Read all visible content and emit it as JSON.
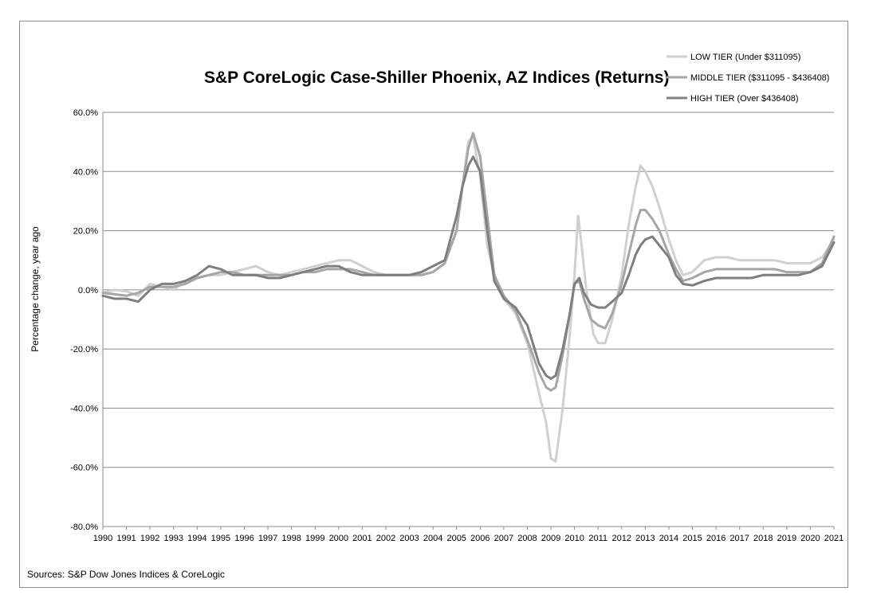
{
  "chart_data": {
    "type": "line",
    "title": "S&P CoreLogic Case-Shiller Phoenix, AZ Indices (Returns)",
    "ylabel": "Percentage change, year ago",
    "xlabel": "",
    "source": "Sources: S&P Dow Jones Indices & CoreLogic",
    "ylim": [
      -80,
      60
    ],
    "xlim": [
      1990,
      2021
    ],
    "y_ticks": [
      "60.0%",
      "40.0%",
      "20.0%",
      "0.0%",
      "-20.0%",
      "-40.0%",
      "-60.0%",
      "-80.0%"
    ],
    "x_ticks": [
      "1990",
      "1991",
      "1992",
      "1993",
      "1994",
      "1995",
      "1996",
      "1997",
      "1998",
      "1999",
      "2000",
      "2001",
      "2002",
      "2003",
      "2004",
      "2005",
      "2006",
      "2007",
      "2008",
      "2009",
      "2010",
      "2011",
      "2012",
      "2013",
      "2014",
      "2015",
      "2016",
      "2017",
      "2018",
      "2019",
      "2020",
      "2021"
    ],
    "grid": true,
    "legend_position": "top-right",
    "series": [
      {
        "name": "LOW TIER (Under $311095)",
        "color": "#d0d0d0",
        "points": [
          [
            1990,
            -1
          ],
          [
            1990.5,
            0
          ],
          [
            1991,
            -0.5
          ],
          [
            1991.5,
            -2
          ],
          [
            1992,
            2
          ],
          [
            1992.5,
            1
          ],
          [
            1993,
            0
          ],
          [
            1993.5,
            3
          ],
          [
            1994,
            4
          ],
          [
            1994.5,
            5
          ],
          [
            1995,
            5
          ],
          [
            1995.5,
            6
          ],
          [
            1996,
            7
          ],
          [
            1996.5,
            8
          ],
          [
            1997,
            6
          ],
          [
            1997.5,
            5
          ],
          [
            1998,
            6
          ],
          [
            1998.5,
            7
          ],
          [
            1999,
            8
          ],
          [
            1999.5,
            9
          ],
          [
            2000,
            10
          ],
          [
            2000.5,
            10
          ],
          [
            2001,
            8
          ],
          [
            2001.5,
            6
          ],
          [
            2002,
            5
          ],
          [
            2002.5,
            5
          ],
          [
            2003,
            5
          ],
          [
            2003.5,
            5
          ],
          [
            2004,
            6
          ],
          [
            2004.5,
            9
          ],
          [
            2005,
            20
          ],
          [
            2005.25,
            35
          ],
          [
            2005.5,
            50
          ],
          [
            2005.7,
            52
          ],
          [
            2006,
            38
          ],
          [
            2006.3,
            15
          ],
          [
            2006.6,
            5
          ],
          [
            2007,
            -3
          ],
          [
            2007.5,
            -8
          ],
          [
            2008,
            -18
          ],
          [
            2008.5,
            -35
          ],
          [
            2008.8,
            -45
          ],
          [
            2009,
            -57
          ],
          [
            2009.2,
            -58
          ],
          [
            2009.5,
            -40
          ],
          [
            2009.8,
            -15
          ],
          [
            2010,
            5
          ],
          [
            2010.15,
            25
          ],
          [
            2010.3,
            15
          ],
          [
            2010.5,
            0
          ],
          [
            2010.8,
            -15
          ],
          [
            2011,
            -18
          ],
          [
            2011.3,
            -18
          ],
          [
            2011.6,
            -10
          ],
          [
            2012,
            5
          ],
          [
            2012.3,
            22
          ],
          [
            2012.6,
            35
          ],
          [
            2012.8,
            42
          ],
          [
            2013,
            40
          ],
          [
            2013.3,
            35
          ],
          [
            2013.6,
            28
          ],
          [
            2014,
            17
          ],
          [
            2014.3,
            10
          ],
          [
            2014.6,
            5
          ],
          [
            2015,
            6
          ],
          [
            2015.5,
            10
          ],
          [
            2016,
            11
          ],
          [
            2016.5,
            11
          ],
          [
            2017,
            10
          ],
          [
            2017.5,
            10
          ],
          [
            2018,
            10
          ],
          [
            2018.5,
            10
          ],
          [
            2019,
            9
          ],
          [
            2019.5,
            9
          ],
          [
            2020,
            9
          ],
          [
            2020.5,
            11
          ],
          [
            2021,
            17
          ]
        ]
      },
      {
        "name": "MIDDLE TIER ($311095 - $436408)",
        "color": "#a6a6a6",
        "points": [
          [
            1990,
            -1
          ],
          [
            1990.5,
            -1.5
          ],
          [
            1991,
            -2
          ],
          [
            1991.5,
            -1
          ],
          [
            1992,
            1
          ],
          [
            1992.5,
            1
          ],
          [
            1993,
            1
          ],
          [
            1993.5,
            2
          ],
          [
            1994,
            4
          ],
          [
            1994.5,
            5
          ],
          [
            1995,
            6
          ],
          [
            1995.5,
            6
          ],
          [
            1996,
            5
          ],
          [
            1996.5,
            5
          ],
          [
            1997,
            5
          ],
          [
            1997.5,
            5
          ],
          [
            1998,
            5
          ],
          [
            1998.5,
            6
          ],
          [
            1999,
            6
          ],
          [
            1999.5,
            7
          ],
          [
            2000,
            7
          ],
          [
            2000.5,
            7
          ],
          [
            2001,
            6
          ],
          [
            2001.5,
            5
          ],
          [
            2002,
            5
          ],
          [
            2002.5,
            5
          ],
          [
            2003,
            5
          ],
          [
            2003.5,
            5
          ],
          [
            2004,
            6
          ],
          [
            2004.5,
            9
          ],
          [
            2005,
            20
          ],
          [
            2005.25,
            35
          ],
          [
            2005.5,
            48
          ],
          [
            2005.7,
            53
          ],
          [
            2006,
            45
          ],
          [
            2006.3,
            25
          ],
          [
            2006.6,
            5
          ],
          [
            2007,
            -2
          ],
          [
            2007.5,
            -7
          ],
          [
            2008,
            -17
          ],
          [
            2008.5,
            -28
          ],
          [
            2008.8,
            -33
          ],
          [
            2009,
            -34
          ],
          [
            2009.2,
            -33
          ],
          [
            2009.5,
            -22
          ],
          [
            2009.8,
            -8
          ],
          [
            2010,
            2
          ],
          [
            2010.2,
            3
          ],
          [
            2010.4,
            -3
          ],
          [
            2010.7,
            -10
          ],
          [
            2011,
            -12
          ],
          [
            2011.3,
            -13
          ],
          [
            2011.6,
            -8
          ],
          [
            2012,
            2
          ],
          [
            2012.3,
            12
          ],
          [
            2012.6,
            22
          ],
          [
            2012.8,
            27
          ],
          [
            2013,
            27
          ],
          [
            2013.3,
            24
          ],
          [
            2013.6,
            20
          ],
          [
            2014,
            12
          ],
          [
            2014.3,
            7
          ],
          [
            2014.6,
            3
          ],
          [
            2015,
            4
          ],
          [
            2015.5,
            6
          ],
          [
            2016,
            7
          ],
          [
            2016.5,
            7
          ],
          [
            2017,
            7
          ],
          [
            2017.5,
            7
          ],
          [
            2018,
            7
          ],
          [
            2018.5,
            7
          ],
          [
            2019,
            6
          ],
          [
            2019.5,
            6
          ],
          [
            2020,
            6
          ],
          [
            2020.5,
            9
          ],
          [
            2021,
            18
          ]
        ]
      },
      {
        "name": "HIGH TIER (Over $436408)",
        "color": "#7f7f7f",
        "points": [
          [
            1990,
            -2
          ],
          [
            1990.5,
            -3
          ],
          [
            1991,
            -3
          ],
          [
            1991.5,
            -4
          ],
          [
            1992,
            0
          ],
          [
            1992.5,
            2
          ],
          [
            1993,
            2
          ],
          [
            1993.5,
            3
          ],
          [
            1994,
            5
          ],
          [
            1994.5,
            8
          ],
          [
            1995,
            7
          ],
          [
            1995.5,
            5
          ],
          [
            1996,
            5
          ],
          [
            1996.5,
            5
          ],
          [
            1997,
            4
          ],
          [
            1997.5,
            4
          ],
          [
            1998,
            5
          ],
          [
            1998.5,
            6
          ],
          [
            1999,
            7
          ],
          [
            1999.5,
            8
          ],
          [
            2000,
            8
          ],
          [
            2000.5,
            6
          ],
          [
            2001,
            5
          ],
          [
            2001.5,
            5
          ],
          [
            2002,
            5
          ],
          [
            2002.5,
            5
          ],
          [
            2003,
            5
          ],
          [
            2003.5,
            6
          ],
          [
            2004,
            8
          ],
          [
            2004.5,
            10
          ],
          [
            2005,
            25
          ],
          [
            2005.25,
            35
          ],
          [
            2005.5,
            42
          ],
          [
            2005.7,
            45
          ],
          [
            2006,
            40
          ],
          [
            2006.3,
            20
          ],
          [
            2006.6,
            3
          ],
          [
            2007,
            -3
          ],
          [
            2007.5,
            -6
          ],
          [
            2008,
            -12
          ],
          [
            2008.5,
            -25
          ],
          [
            2008.8,
            -29
          ],
          [
            2009,
            -30
          ],
          [
            2009.2,
            -29
          ],
          [
            2009.5,
            -20
          ],
          [
            2009.8,
            -8
          ],
          [
            2010,
            2
          ],
          [
            2010.2,
            4
          ],
          [
            2010.4,
            -1
          ],
          [
            2010.7,
            -5
          ],
          [
            2011,
            -6
          ],
          [
            2011.3,
            -6
          ],
          [
            2011.6,
            -4
          ],
          [
            2012,
            -1
          ],
          [
            2012.3,
            5
          ],
          [
            2012.6,
            12
          ],
          [
            2012.8,
            15
          ],
          [
            2013,
            17
          ],
          [
            2013.3,
            18
          ],
          [
            2013.6,
            15
          ],
          [
            2014,
            11
          ],
          [
            2014.3,
            5
          ],
          [
            2014.6,
            2
          ],
          [
            2015,
            1.5
          ],
          [
            2015.5,
            3
          ],
          [
            2016,
            4
          ],
          [
            2016.5,
            4
          ],
          [
            2017,
            4
          ],
          [
            2017.5,
            4
          ],
          [
            2018,
            5
          ],
          [
            2018.5,
            5
          ],
          [
            2019,
            5
          ],
          [
            2019.5,
            5
          ],
          [
            2020,
            6
          ],
          [
            2020.5,
            8
          ],
          [
            2021,
            16
          ]
        ]
      }
    ]
  }
}
